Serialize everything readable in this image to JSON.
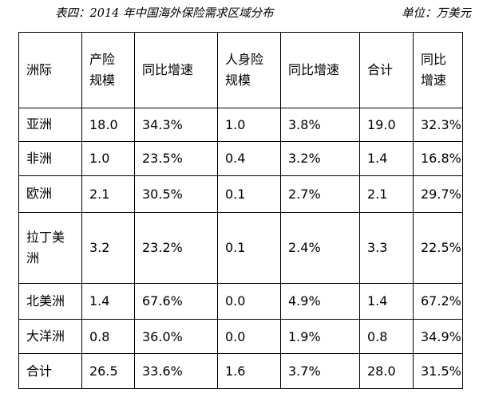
{
  "title": "表四：2014 年中国海外保险需求区域分布",
  "unit": "单位：万美元",
  "header": {
    "region": "洲际",
    "premium_line1": "产险",
    "premium_line2": "规模",
    "premium_growth": "同比增速",
    "life_line1": "人身险",
    "life_line2": "规模",
    "life_growth": "同比增速",
    "total": "合计",
    "total_growth_line1": "同比",
    "total_growth_line2": "增速"
  },
  "rows": [
    {
      "region": "亚洲",
      "p": "18.0",
      "pg": "34.3%",
      "l": "1.0",
      "lg": "3.8%",
      "t": "19.0",
      "tg": "32.3%"
    },
    {
      "region": "非洲",
      "p": "1.0",
      "pg": "23.5%",
      "l": "0.4",
      "lg": "3.2%",
      "t": "1.4",
      "tg": "16.8%"
    },
    {
      "region": "欧洲",
      "p": "2.1",
      "pg": "30.5%",
      "l": "0.1",
      "lg": "2.7%",
      "t": "2.1",
      "tg": "29.7%"
    },
    {
      "region_line1": "拉丁美",
      "region_line2": "洲",
      "p": "3.2",
      "pg": "23.2%",
      "l": "0.1",
      "lg": "2.4%",
      "t": "3.3",
      "tg": "22.5%"
    },
    {
      "region": "北美洲",
      "p": "1.4",
      "pg": "67.6%",
      "l": "0.0",
      "lg": "4.9%",
      "t": "1.4",
      "tg": "67.2%"
    },
    {
      "region": "大洋洲",
      "p": "0.8",
      "pg": "36.0%",
      "l": "0.0",
      "lg": "1.9%",
      "t": "0.8",
      "tg": "34.9%"
    },
    {
      "region": "合计",
      "p": "26.5",
      "pg": "33.6%",
      "l": "1.6",
      "lg": "3.7%",
      "t": "28.0",
      "tg": "31.5%"
    }
  ]
}
